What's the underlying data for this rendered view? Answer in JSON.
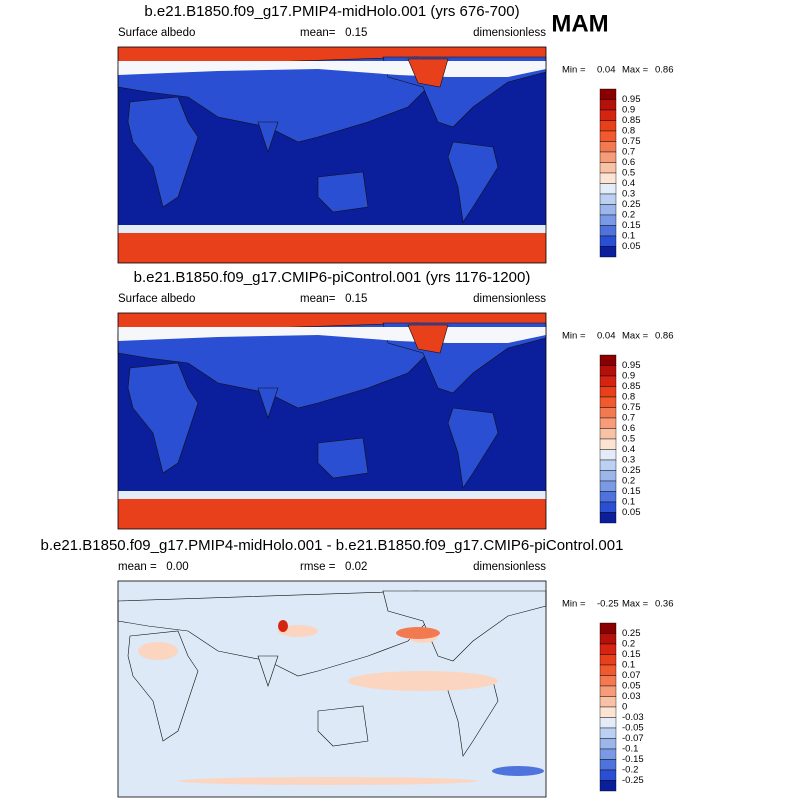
{
  "figure_title": "MAM",
  "panels": [
    {
      "title": "b.e21.B1850.f09_g17.PMIP4-midHolo.001 (yrs 676-700)",
      "left": "Surface albedo",
      "center": "mean=   0.15",
      "right": "dimensionless",
      "min_label": "Min =",
      "min": "0.04",
      "max_label": "Max =",
      "max": "0.86",
      "colorbar": {
        "labels": [
          "0.95",
          "0.9",
          "0.85",
          "0.8",
          "0.75",
          "0.7",
          "0.6",
          "0.5",
          "0.4",
          "0.3",
          "0.25",
          "0.2",
          "0.15",
          "0.1",
          "0.05"
        ],
        "colors": [
          "#8a0000",
          "#b5110a",
          "#d52412",
          "#e8401b",
          "#f05a2e",
          "#f37a50",
          "#f69c78",
          "#f9c2a6",
          "#fde3d3",
          "#e4ecf8",
          "#bcd0f2",
          "#9cb6ec",
          "#7a9ae5",
          "#4f73dd",
          "#2a4fd2",
          "#0b1f9c"
        ]
      }
    },
    {
      "title": "b.e21.B1850.f09_g17.CMIP6-piControl.001 (yrs 1176-1200)",
      "left": "Surface albedo",
      "center": "mean=   0.15",
      "right": "dimensionless",
      "min_label": "Min =",
      "min": "0.04",
      "max_label": "Max =",
      "max": "0.86",
      "colorbar": {
        "labels": [
          "0.95",
          "0.9",
          "0.85",
          "0.8",
          "0.75",
          "0.7",
          "0.6",
          "0.5",
          "0.4",
          "0.3",
          "0.25",
          "0.2",
          "0.15",
          "0.1",
          "0.05"
        ],
        "colors": [
          "#8a0000",
          "#b5110a",
          "#d52412",
          "#e8401b",
          "#f05a2e",
          "#f37a50",
          "#f69c78",
          "#f9c2a6",
          "#fde3d3",
          "#e4ecf8",
          "#bcd0f2",
          "#9cb6ec",
          "#7a9ae5",
          "#4f73dd",
          "#2a4fd2",
          "#0b1f9c"
        ]
      }
    },
    {
      "title": "b.e21.B1850.f09_g17.PMIP4-midHolo.001 - b.e21.B1850.f09_g17.CMIP6-piControl.001",
      "left": "mean =   0.00",
      "center": "rmse =   0.02",
      "right": "dimensionless",
      "min_label": "Min =",
      "min": "-0.25",
      "max_label": "Max =",
      "max": "0.36",
      "colorbar": {
        "labels": [
          "0.25",
          "0.2",
          "0.15",
          "0.1",
          "0.07",
          "0.05",
          "0.03",
          "0",
          "-0.03",
          "-0.05",
          "-0.07",
          "-0.1",
          "-0.15",
          "-0.2",
          "-0.25"
        ],
        "colors": [
          "#8a0000",
          "#b5110a",
          "#d52412",
          "#e8401b",
          "#f05a2e",
          "#f37a50",
          "#f69c78",
          "#f9c2a6",
          "#fde3d3",
          "#e4ecf8",
          "#bcd0f2",
          "#9cb6ec",
          "#7a9ae5",
          "#4f73dd",
          "#2a4fd2",
          "#0b1f9c"
        ]
      }
    }
  ]
}
